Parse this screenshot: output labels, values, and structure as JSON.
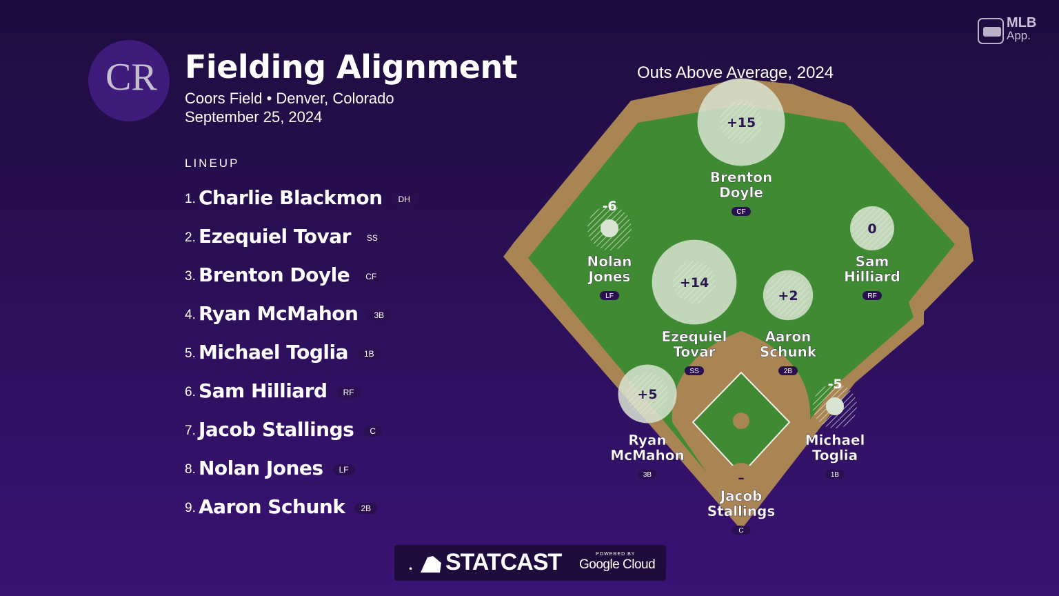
{
  "header": {
    "logo_text": "CR",
    "title": "Fielding Alignment",
    "subtitle": "Coors Field • Denver, Colorado",
    "date": "September 25, 2024"
  },
  "lineup": {
    "heading": "LINEUP",
    "players": [
      {
        "num": "1.",
        "name": "Charlie Blackmon",
        "pos": "DH"
      },
      {
        "num": "2.",
        "name": "Ezequiel Tovar",
        "pos": "SS"
      },
      {
        "num": "3.",
        "name": "Brenton Doyle",
        "pos": "CF"
      },
      {
        "num": "4.",
        "name": "Ryan McMahon",
        "pos": "3B"
      },
      {
        "num": "5.",
        "name": "Michael Toglia",
        "pos": "1B"
      },
      {
        "num": "6.",
        "name": "Sam Hilliard",
        "pos": "RF"
      },
      {
        "num": "7.",
        "name": "Jacob Stallings",
        "pos": "C"
      },
      {
        "num": "8.",
        "name": "Nolan Jones",
        "pos": "LF"
      },
      {
        "num": "9.",
        "name": "Aaron Schunk",
        "pos": "2B"
      }
    ]
  },
  "field": {
    "heading": "Outs Above Average, 2024",
    "fielders": [
      {
        "id": "cf",
        "first": "Brenton",
        "last": "Doyle",
        "pos": "CF",
        "oaa": "+15",
        "oaa_value": 15
      },
      {
        "id": "lf",
        "first": "Nolan",
        "last": "Jones",
        "pos": "LF",
        "oaa": "-6",
        "oaa_value": -6
      },
      {
        "id": "rf",
        "first": "Sam",
        "last": "Hilliard",
        "pos": "RF",
        "oaa": "0",
        "oaa_value": 0
      },
      {
        "id": "ss",
        "first": "Ezequiel",
        "last": "Tovar",
        "pos": "SS",
        "oaa": "+14",
        "oaa_value": 14
      },
      {
        "id": "2b",
        "first": "Aaron",
        "last": "Schunk",
        "pos": "2B",
        "oaa": "+2",
        "oaa_value": 2
      },
      {
        "id": "3b",
        "first": "Ryan",
        "last": "McMahon",
        "pos": "3B",
        "oaa": "+5",
        "oaa_value": 5
      },
      {
        "id": "1b",
        "first": "Michael",
        "last": "Toglia",
        "pos": "1B",
        "oaa": "-5",
        "oaa_value": -5
      },
      {
        "id": "c",
        "first": "Jacob",
        "last": "Stallings",
        "pos": "C",
        "oaa": "–",
        "oaa_value": null
      }
    ]
  },
  "branding": {
    "mlb_app_line1": "MLB",
    "mlb_app_line2": "App.",
    "statcast": "STATCAST",
    "powered_by": "POWERED BY",
    "google_cloud": "Google Cloud"
  },
  "colors": {
    "grass": "#3f8a32",
    "dirt": "#a98554",
    "background": "#2a0f55",
    "oaa_circle": "#d9e4d2"
  },
  "icons": [
    "rockies-logo-icon",
    "mlb-app-icon",
    "mlb-batter-icon"
  ]
}
